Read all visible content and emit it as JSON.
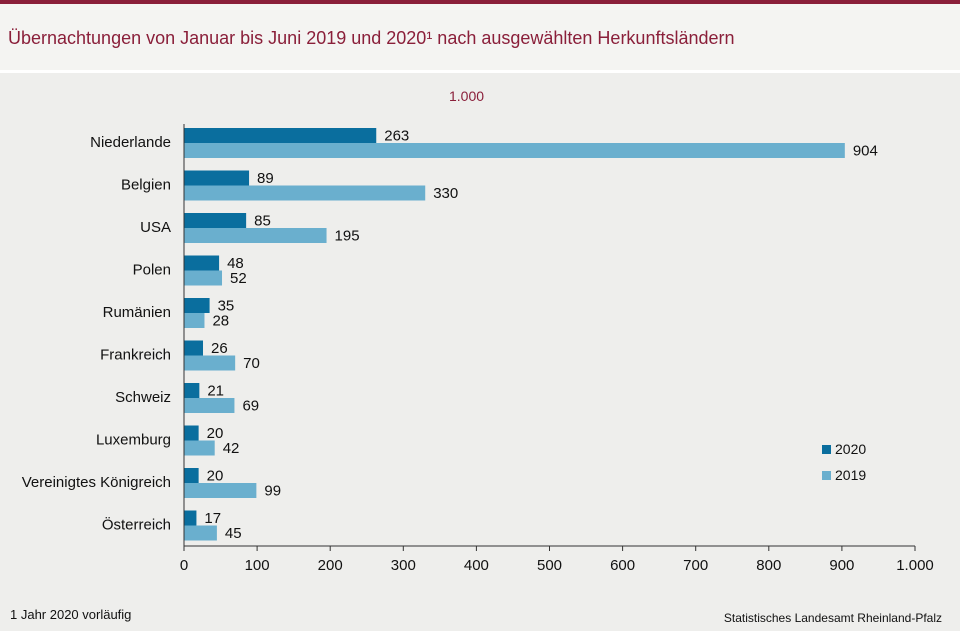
{
  "header": {
    "title": "Übernachtungen von Januar bis Juni 2019 und 2020¹ nach ausgewählten Herkunftsländern",
    "unit_label": "1.000"
  },
  "footer": {
    "footnote": "1 Jahr 2020 vorläufig",
    "source": "Statistisches Landesamt Rheinland-Pfalz"
  },
  "colors": {
    "series_2020": "#0a6e9e",
    "series_2019": "#6aafce",
    "accent": "#8a1f3a"
  },
  "chart_data": {
    "type": "bar",
    "orientation": "horizontal",
    "title": "Übernachtungen von Januar bis Juni 2019 und 2020¹ nach ausgewählten Herkunftsländern",
    "unit": "1.000",
    "categories": [
      "Niederlande",
      "Belgien",
      "USA",
      "Polen",
      "Rumänien",
      "Frankreich",
      "Schweiz",
      "Luxemburg",
      "Vereinigtes Königreich",
      "Österreich"
    ],
    "series": [
      {
        "name": "2020",
        "values": [
          263,
          89,
          85,
          48,
          35,
          26,
          21,
          20,
          20,
          17
        ]
      },
      {
        "name": "2019",
        "values": [
          904,
          330,
          195,
          52,
          28,
          70,
          69,
          42,
          99,
          45
        ]
      }
    ],
    "xlim": [
      0,
      1000
    ],
    "ticks": [
      0,
      100,
      200,
      300,
      400,
      500,
      600,
      700,
      800,
      900,
      1000
    ],
    "tick_labels": [
      "0",
      "100",
      "200",
      "300",
      "400",
      "500",
      "600",
      "700",
      "800",
      "900",
      "1.000"
    ],
    "grid": false,
    "legend_position": "right"
  }
}
